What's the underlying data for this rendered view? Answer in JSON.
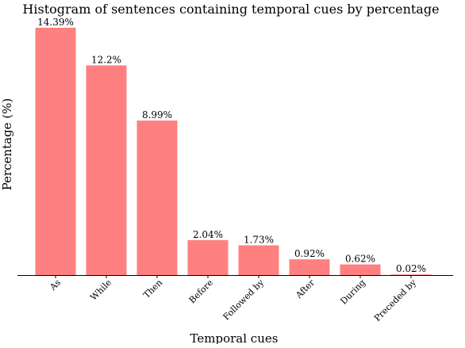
{
  "chart_data": {
    "type": "bar",
    "title": "Histogram of sentences containing temporal cues by percentage",
    "xlabel": "Temporal cues",
    "ylabel": "Percentage (%)",
    "categories": [
      "As",
      "While",
      "Then",
      "Before",
      "Followed by",
      "After",
      "During",
      "Preceded by"
    ],
    "values": [
      14.39,
      12.2,
      8.99,
      2.04,
      1.73,
      0.92,
      0.62,
      0.02
    ],
    "data_labels": [
      "14.39%",
      "12.2%",
      "8.99%",
      "2.04%",
      "1.73%",
      "0.92%",
      "0.62%",
      "0.02%"
    ],
    "ylim": [
      0,
      14.39
    ],
    "bar_color": "#ff8080",
    "grid": false,
    "legend": false,
    "y_ticks_shown": false,
    "x_tick_label_rotation_deg": -45
  }
}
